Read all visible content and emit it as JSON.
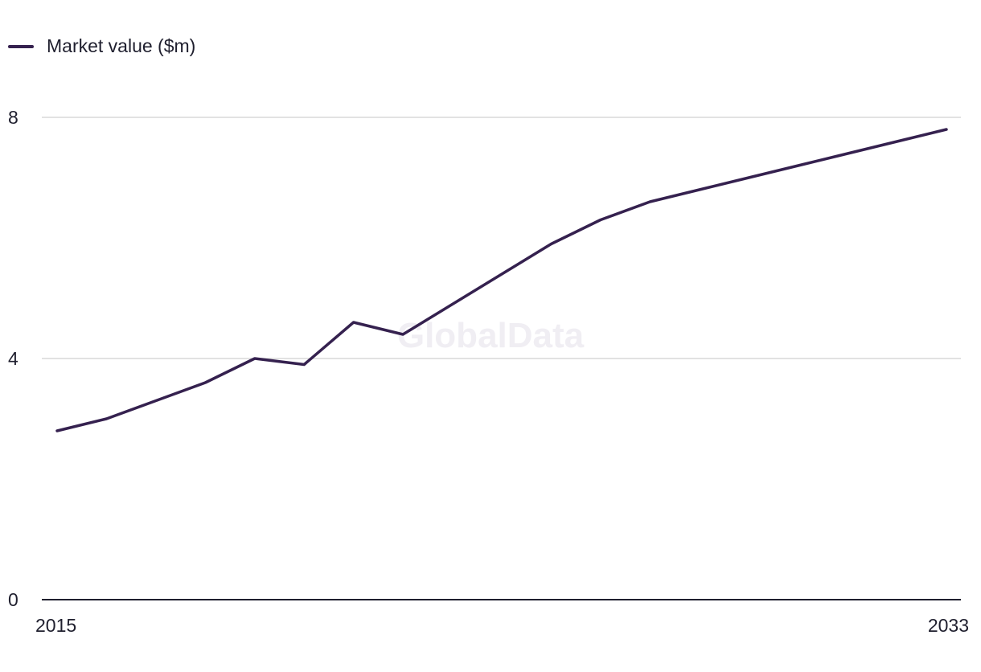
{
  "legend": {
    "series_label": "Market value ($m)"
  },
  "watermark": "GlobalData",
  "colors": {
    "series": "#35214f",
    "grid": "#d9d9d9",
    "axis": "#1f1f2e"
  },
  "chart_data": {
    "type": "line",
    "x": [
      2015,
      2016,
      2017,
      2018,
      2019,
      2020,
      2021,
      2022,
      2023,
      2024,
      2025,
      2026,
      2027,
      2028,
      2029,
      2030,
      2031,
      2032,
      2033
    ],
    "series": [
      {
        "name": "Market value ($m)",
        "values": [
          2.8,
          3.0,
          3.3,
          3.6,
          4.0,
          3.9,
          4.6,
          4.4,
          4.9,
          5.4,
          5.9,
          6.3,
          6.6,
          6.8,
          7.0,
          7.2,
          7.4,
          7.6,
          7.8
        ]
      }
    ],
    "xlim": [
      2015,
      2033
    ],
    "ylim": [
      0,
      8
    ],
    "y_ticks": [
      0,
      4,
      8
    ],
    "x_tick_labels": [
      "2015",
      "2033"
    ],
    "grid": true,
    "legend_position": "top-left"
  }
}
